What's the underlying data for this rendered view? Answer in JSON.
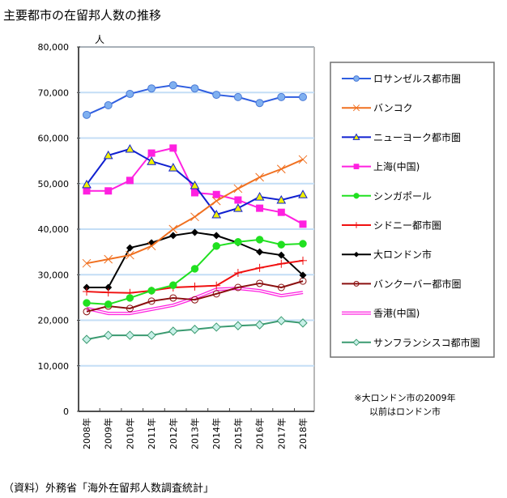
{
  "title": "主要都市の在留邦人数の推移",
  "unit_label": "人",
  "source": "（資料）外務省「海外在留邦人数調査統計」",
  "note_lines": [
    "※大ロンドン市の2009年",
    "以前はロンドン市"
  ],
  "chart_data": {
    "type": "line",
    "title": "主要都市の在留邦人数の推移",
    "xlabel": "",
    "ylabel": "人",
    "ylim": [
      0,
      80000
    ],
    "yticks": [
      0,
      10000,
      20000,
      30000,
      40000,
      50000,
      60000,
      70000,
      80000
    ],
    "ytick_labels": [
      "0",
      "10,000",
      "20,000",
      "30,000",
      "40,000",
      "50,000",
      "60,000",
      "70,000",
      "80,000"
    ],
    "grid": true,
    "legend_position": "right",
    "categories": [
      "2008年",
      "2009年",
      "2010年",
      "2011年",
      "2012年",
      "2013年",
      "2014年",
      "2015年",
      "2016年",
      "2017年",
      "2018年"
    ],
    "series": [
      {
        "name": "ロサンゼルス都市圏",
        "color": "#2f5ee0",
        "marker": "circle",
        "marker_fill": "#7fb0f0",
        "values": [
          65100,
          67200,
          69700,
          70900,
          71600,
          70900,
          69500,
          69000,
          67700,
          69000,
          69000
        ]
      },
      {
        "name": "バンコク",
        "color": "#f07020",
        "marker": "x",
        "marker_fill": "#f07020",
        "values": [
          32500,
          33400,
          34300,
          36300,
          40000,
          42700,
          46200,
          48900,
          51400,
          53200,
          55300
        ]
      },
      {
        "name": "ニューヨーク都市圏",
        "color": "#1020d0",
        "marker": "triangle",
        "marker_fill": "#f0f000",
        "values": [
          49800,
          56200,
          57600,
          54900,
          53500,
          49600,
          43200,
          44600,
          47100,
          46400,
          47600
        ]
      },
      {
        "name": "上海(中国)",
        "color": "#ff20e0",
        "marker": "square",
        "marker_fill": "#ff20e0",
        "values": [
          48400,
          48400,
          50700,
          56700,
          57800,
          48000,
          47600,
          46400,
          44600,
          43700,
          41100
        ]
      },
      {
        "name": "シンガポール",
        "color": "#20e020",
        "marker": "dot",
        "marker_fill": "#20e020",
        "values": [
          23800,
          23500,
          24900,
          26500,
          27700,
          31300,
          36300,
          37200,
          37700,
          36600,
          36800
        ]
      },
      {
        "name": "シドニー都市圏",
        "color": "#f01010",
        "marker": "plus",
        "marker_fill": "#f01010",
        "values": [
          26300,
          26100,
          26000,
          26500,
          27200,
          27400,
          27600,
          30400,
          31500,
          32400,
          33100
        ]
      },
      {
        "name": "大ロンドン市",
        "color": "#000000",
        "marker": "diamond",
        "marker_fill": "#000000",
        "values": [
          27200,
          27200,
          35900,
          37000,
          38600,
          39300,
          38600,
          37000,
          35000,
          34300,
          29900
        ]
      },
      {
        "name": "バンクーバー都市圏",
        "color": "#8b1010",
        "marker": "open-circle",
        "marker_fill": "#ffffff",
        "values": [
          21900,
          23100,
          22600,
          24200,
          24900,
          24500,
          25800,
          27200,
          28100,
          27200,
          28600
        ]
      },
      {
        "name": "香港(中国)",
        "color": "#ff20e0",
        "marker": "none",
        "marker_fill": "#ffffff",
        "double_line": true,
        "values": [
          22600,
          21500,
          21500,
          22400,
          23300,
          24900,
          26800,
          27000,
          26500,
          25400,
          26100
        ]
      },
      {
        "name": "サンフランシスコ都市圏",
        "color": "#3a9a70",
        "marker": "open-diamond",
        "marker_fill": "#c8f0e8",
        "values": [
          15800,
          16700,
          16700,
          16700,
          17600,
          18000,
          18500,
          18800,
          19000,
          19900,
          19400
        ]
      }
    ]
  }
}
